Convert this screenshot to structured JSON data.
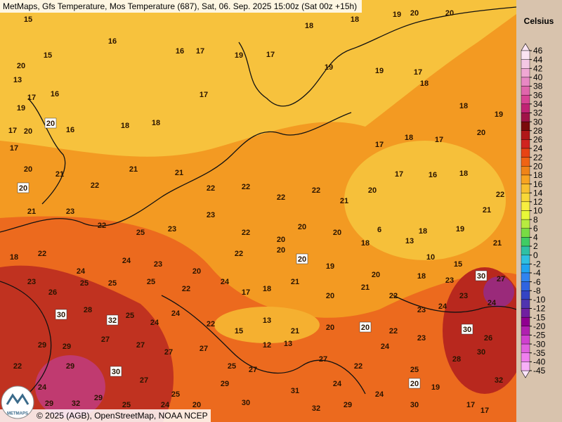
{
  "header": {
    "title": "MetMaps, Gfs Temperature, Mos Temperature (687), Sat, 06. Sep. 2025 15:00z (Sat 00z +15h)"
  },
  "legend": {
    "title": "Celsius",
    "ticks": [
      46,
      44,
      42,
      40,
      38,
      36,
      34,
      32,
      30,
      28,
      26,
      24,
      22,
      20,
      18,
      16,
      14,
      12,
      10,
      8,
      6,
      4,
      2,
      0,
      -2,
      -4,
      -6,
      -8,
      -10,
      -12,
      -15,
      -20,
      -25,
      -30,
      -35,
      -40,
      -45
    ],
    "colors": [
      "#fae4f2",
      "#f4c8e4",
      "#f0a8d4",
      "#e888c4",
      "#e066ac",
      "#d84494",
      "#c02474",
      "#a01448",
      "#7a0a0a",
      "#b01818",
      "#d02420",
      "#e84414",
      "#f06414",
      "#f08418",
      "#f8a422",
      "#f8c030",
      "#f8d838",
      "#f8ee40",
      "#e8f838",
      "#b8ec40",
      "#78dc44",
      "#40cc64",
      "#30c0a4",
      "#30c0e0",
      "#20a4f0",
      "#3084f0",
      "#3064e0",
      "#3444c4",
      "#5034b0",
      "#7020a0",
      "#900090",
      "#b020b0",
      "#d040d0",
      "#e060e0",
      "#f080f0",
      "#f8b0f8",
      "#fce4fc"
    ]
  },
  "stations": {
    "values": [
      15,
      16,
      15,
      20,
      13,
      17,
      16,
      19,
      17,
      20,
      20,
      16,
      18,
      18,
      17,
      16,
      17,
      19,
      17,
      18,
      18,
      19,
      20,
      20,
      19,
      19,
      17,
      18,
      18,
      19,
      20,
      17,
      18,
      17,
      17,
      16,
      18,
      22,
      21,
      21,
      19,
      18,
      6,
      13,
      10,
      15,
      17,
      20,
      21,
      22,
      21,
      21,
      22,
      22,
      22,
      22,
      21,
      20,
      20,
      21,
      23,
      22,
      25,
      23,
      23,
      22,
      20,
      20,
      20,
      18,
      18,
      22,
      24,
      24,
      23,
      20,
      22,
      20,
      20,
      19,
      20,
      18,
      23,
      30,
      27,
      23,
      26,
      25,
      25,
      25,
      22,
      24,
      17,
      18,
      21,
      20,
      21,
      22,
      23,
      24,
      23,
      24,
      30,
      28,
      32,
      25,
      24,
      24,
      22,
      15,
      13,
      21,
      20,
      20,
      22,
      23,
      30,
      26,
      22,
      29,
      29,
      27,
      27,
      27,
      27,
      25,
      12,
      13,
      27,
      22,
      24,
      25,
      28,
      30,
      24,
      29,
      30,
      27,
      25,
      29,
      27,
      31,
      24,
      24,
      20,
      19,
      32,
      29,
      32,
      29,
      25,
      24,
      20,
      30,
      32,
      29,
      30,
      17,
      17
    ]
  },
  "footer": {
    "logo": "METMAPS",
    "credit": "© 2025 (AGB), OpenStreetMap, NOAA NCEP"
  }
}
